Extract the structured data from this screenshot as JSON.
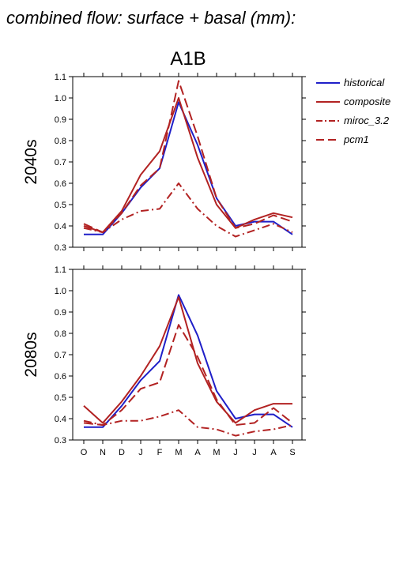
{
  "header": {
    "title": "combined flow: surface + basal (mm):",
    "scenario": "A1B"
  },
  "legend": {
    "placement": "right",
    "entries": [
      {
        "label": "historical",
        "color": "#1f1fc8",
        "dash": "solid"
      },
      {
        "label": "composite",
        "color": "#b22222",
        "dash": "solid"
      },
      {
        "label": "miroc_3.2",
        "color": "#b22222",
        "dash": "dashdot"
      },
      {
        "label": "pcm1",
        "color": "#b22222",
        "dash": "dashed"
      }
    ]
  },
  "chart_data": [
    {
      "type": "line",
      "ylabel": "2040s",
      "xlabel": "",
      "ylim": [
        0.3,
        1.1
      ],
      "yticks": [
        "0.3",
        "0.4",
        "0.5",
        "0.6",
        "0.7",
        "0.8",
        "0.9",
        "1.0",
        "1.1"
      ],
      "categories": [
        "O",
        "N",
        "D",
        "J",
        "F",
        "M",
        "A",
        "M",
        "J",
        "J",
        "A",
        "S"
      ],
      "show_xtick_labels": false,
      "series": [
        {
          "name": "historical",
          "color": "#1f1fc8",
          "dash": "solid",
          "values": [
            0.36,
            0.36,
            0.46,
            0.58,
            0.67,
            0.98,
            0.78,
            0.53,
            0.4,
            0.42,
            0.42,
            0.36
          ]
        },
        {
          "name": "composite",
          "color": "#b22222",
          "dash": "solid",
          "values": [
            0.4,
            0.37,
            0.47,
            0.64,
            0.75,
            1.0,
            0.72,
            0.5,
            0.39,
            0.43,
            0.46,
            0.44
          ]
        },
        {
          "name": "miroc_3.2",
          "color": "#b22222",
          "dash": "dashdot",
          "values": [
            0.39,
            0.37,
            0.43,
            0.47,
            0.48,
            0.6,
            0.48,
            0.4,
            0.35,
            0.38,
            0.41,
            0.37
          ]
        },
        {
          "name": "pcm1",
          "color": "#b22222",
          "dash": "dashed",
          "values": [
            0.41,
            0.37,
            0.46,
            0.59,
            0.67,
            1.08,
            0.82,
            0.53,
            0.39,
            0.41,
            0.45,
            0.42
          ]
        }
      ]
    },
    {
      "type": "line",
      "ylabel": "2080s",
      "xlabel": "",
      "ylim": [
        0.3,
        1.1
      ],
      "yticks": [
        "0.3",
        "0.4",
        "0.5",
        "0.6",
        "0.7",
        "0.8",
        "0.9",
        "1.0",
        "1.1"
      ],
      "categories": [
        "O",
        "N",
        "D",
        "J",
        "F",
        "M",
        "A",
        "M",
        "J",
        "J",
        "A",
        "S"
      ],
      "show_xtick_labels": true,
      "series": [
        {
          "name": "historical",
          "color": "#1f1fc8",
          "dash": "solid",
          "values": [
            0.36,
            0.36,
            0.46,
            0.58,
            0.67,
            0.98,
            0.79,
            0.53,
            0.4,
            0.42,
            0.42,
            0.36
          ]
        },
        {
          "name": "composite",
          "color": "#b22222",
          "dash": "solid",
          "values": [
            0.46,
            0.38,
            0.48,
            0.6,
            0.74,
            0.97,
            0.66,
            0.48,
            0.38,
            0.44,
            0.47,
            0.47
          ]
        },
        {
          "name": "miroc_3.2",
          "color": "#b22222",
          "dash": "dashdot",
          "values": [
            0.39,
            0.37,
            0.39,
            0.39,
            0.41,
            0.44,
            0.36,
            0.35,
            0.32,
            0.34,
            0.35,
            0.37
          ]
        },
        {
          "name": "pcm1",
          "color": "#b22222",
          "dash": "dashed",
          "values": [
            0.38,
            0.37,
            0.44,
            0.54,
            0.57,
            0.84,
            0.69,
            0.49,
            0.37,
            0.38,
            0.45,
            0.38
          ]
        }
      ]
    }
  ]
}
